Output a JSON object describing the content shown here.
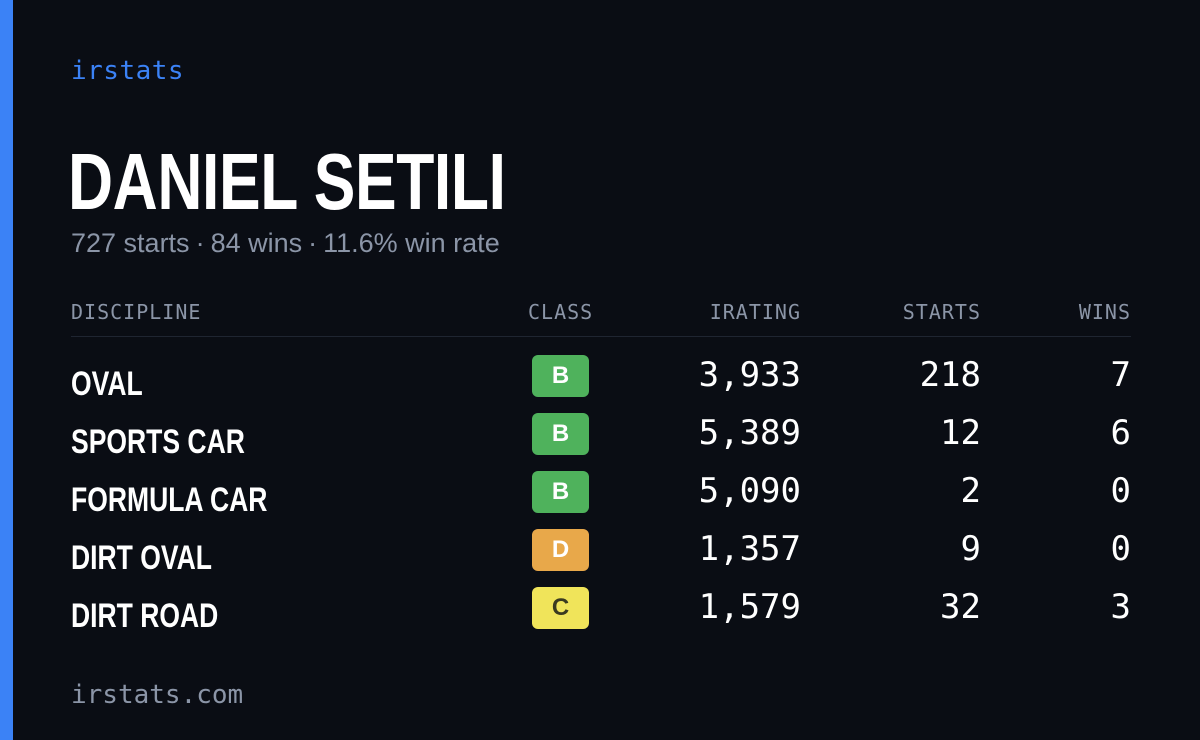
{
  "brand": "irstats",
  "driver": {
    "name": "DANIEL SETILI",
    "starts_text": "727 starts",
    "wins_text": "84 wins",
    "win_rate_text": "11.6% win rate",
    "separator": "·"
  },
  "table": {
    "headers": {
      "discipline": "DISCIPLINE",
      "class": "CLASS",
      "irating": "IRATING",
      "starts": "STARTS",
      "wins": "WINS"
    },
    "rows": [
      {
        "discipline": "OVAL",
        "class": "B",
        "class_color": "#4fb25c",
        "class_text_color": "#ffffff",
        "irating": "3,933",
        "starts": "218",
        "wins": "7"
      },
      {
        "discipline": "SPORTS CAR",
        "class": "B",
        "class_color": "#4fb25c",
        "class_text_color": "#ffffff",
        "irating": "5,389",
        "starts": "12",
        "wins": "6"
      },
      {
        "discipline": "FORMULA CAR",
        "class": "B",
        "class_color": "#4fb25c",
        "class_text_color": "#ffffff",
        "irating": "5,090",
        "starts": "2",
        "wins": "0"
      },
      {
        "discipline": "DIRT OVAL",
        "class": "D",
        "class_color": "#e8a84a",
        "class_text_color": "#ffffff",
        "irating": "1,357",
        "starts": "9",
        "wins": "0"
      },
      {
        "discipline": "DIRT ROAD",
        "class": "C",
        "class_color": "#f0e45a",
        "class_text_color": "#3a3a20",
        "irating": "1,579",
        "starts": "32",
        "wins": "3"
      }
    ]
  },
  "footer": "irstats.com",
  "colors": {
    "background": "#0a0d14",
    "accent": "#3b82f6",
    "muted": "#8b95a7"
  }
}
